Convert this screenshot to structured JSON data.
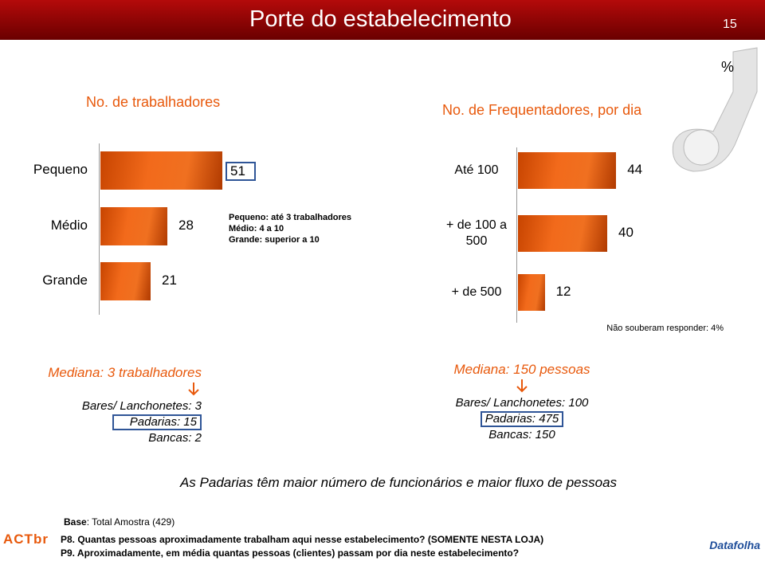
{
  "header": {
    "title": "Porte do estabelecimento",
    "page_number": "15"
  },
  "unit": "%",
  "chart_data": [
    {
      "type": "bar",
      "orientation": "horizontal",
      "title": "No. de trabalhadores",
      "categories": [
        "Pequeno",
        "Médio",
        "Grande"
      ],
      "values": [
        51,
        28,
        21
      ],
      "color": "#f26a1b",
      "xlim": [
        0,
        100
      ],
      "highlight": 0
    },
    {
      "type": "bar",
      "orientation": "horizontal",
      "title": "No. de Frequentadores, por dia",
      "categories": [
        "Até 100",
        "+ de 100 a 500",
        "+ de 500"
      ],
      "values": [
        44,
        40,
        12
      ],
      "color": "#f26a1b",
      "xlim": [
        0,
        100
      ]
    }
  ],
  "notes": {
    "size_legend": [
      "Pequeno: até 3 trabalhadores",
      "Médio: 4 a 10",
      "Grande: superior a 10"
    ],
    "no_answer": "Não souberam responder:  4%"
  },
  "medians": [
    {
      "heading": "Mediana: 3 trabalhadores",
      "lines": [
        "Bares/ Lanchonetes: 3",
        "Padarias: 15",
        "Bancas: 2"
      ],
      "highlight": 1
    },
    {
      "heading": "Mediana: 150 pessoas",
      "lines": [
        "Bares/ Lanchonetes: 100",
        "Padarias: 475",
        "Bancas: 150"
      ],
      "highlight": 1
    }
  ],
  "conclusion": "As Padarias têm maior número de funcionários e maior fluxo de pessoas",
  "base": {
    "label": "Base",
    "text": ": Total Amostra (429)"
  },
  "questions": [
    "P8. Quantas pessoas aproximadamente  trabalham aqui nesse estabelecimento? (SOMENTE NESTA LOJA)",
    "P9. Aproximadamente, em média quantas pessoas (clientes) passam por dia neste estabelecimento?"
  ],
  "logos": [
    "ACTbr",
    "Datafolha"
  ]
}
